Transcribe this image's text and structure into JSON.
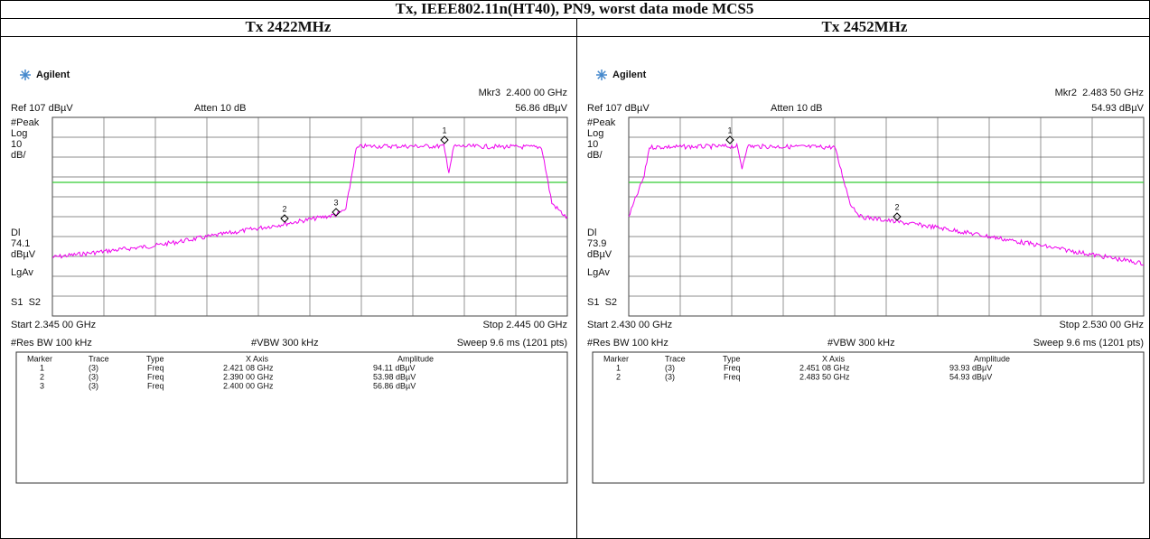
{
  "title": "Tx, IEEE802.11n(HT40), PN9, worst data mode MCS5",
  "panels": [
    {
      "heading": "Tx 2422MHz",
      "brand": "Agilent",
      "marker_readout": "Mkr3  2.400 00 GHz",
      "ref": "Ref 107 dBµV",
      "atten": "Atten 10 dB",
      "marker_amplitude": "56.86 dBµV",
      "side_labels": [
        "#Peak",
        "Log",
        "10",
        "dB/",
        "Dl",
        "74.1",
        "dBµV",
        "LgAv",
        "S1  S2"
      ],
      "start": "Start 2.345 00 GHz",
      "stop": "Stop 2.445 00 GHz",
      "res_bw": "#Res BW 100 kHz",
      "vbw": "#VBW 300 kHz",
      "sweep": "Sweep 9.6 ms (1201 pts)",
      "trace_markers": [
        "1",
        "2",
        "3"
      ],
      "marker_table": {
        "columns": [
          "Marker",
          "Trace",
          "Type",
          "X Axis",
          "Amplitude"
        ],
        "rows": [
          [
            "1",
            "(3)",
            "Freq",
            "2.421 08 GHz",
            "94.11 dBµV"
          ],
          [
            "2",
            "(3)",
            "Freq",
            "2.390 00 GHz",
            "53.98 dBµV"
          ],
          [
            "3",
            "(3)",
            "Freq",
            "2.400 00 GHz",
            "56.86 dBµV"
          ]
        ]
      }
    },
    {
      "heading": "Tx 2452MHz",
      "brand": "Agilent",
      "marker_readout": "Mkr2  2.483 50 GHz",
      "ref": "Ref 107 dBµV",
      "atten": "Atten 10 dB",
      "marker_amplitude": "54.93 dBµV",
      "side_labels": [
        "#Peak",
        "Log",
        "10",
        "dB/",
        "Dl",
        "73.9",
        "dBµV",
        "LgAv",
        "S1  S2"
      ],
      "start": "Start 2.430 00 GHz",
      "stop": "Stop 2.530 00 GHz",
      "res_bw": "#Res BW 100 kHz",
      "vbw": "#VBW 300 kHz",
      "sweep": "Sweep 9.6 ms (1201 pts)",
      "trace_markers": [
        "1",
        "2"
      ],
      "marker_table": {
        "columns": [
          "Marker",
          "Trace",
          "Type",
          "X Axis",
          "Amplitude"
        ],
        "rows": [
          [
            "1",
            "(3)",
            "Freq",
            "2.451 08 GHz",
            "93.93 dBµV"
          ],
          [
            "2",
            "(3)",
            "Freq",
            "2.483 50 GHz",
            "54.93 dBµV"
          ]
        ]
      }
    }
  ]
}
